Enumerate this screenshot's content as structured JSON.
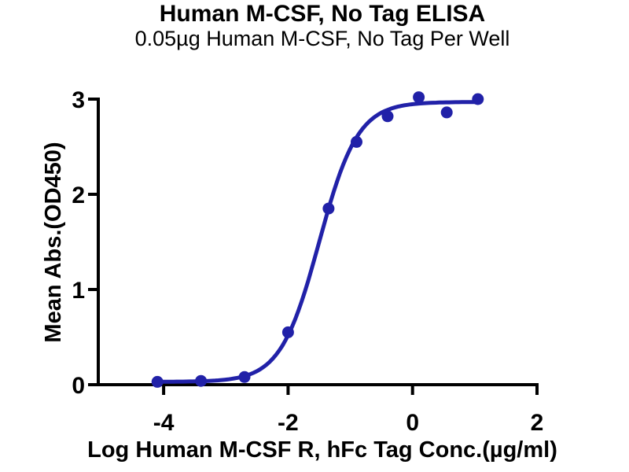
{
  "chart_data": {
    "type": "scatter",
    "title": "Human M-CSF, No Tag ELISA",
    "subtitle": "0.05µg Human M-CSF, No Tag Per Well",
    "xlabel": "Log Human M-CSF R, hFc Tag Conc.(µg/ml)",
    "ylabel": "Mean Abs.(OD450)",
    "xlim": [
      -5.05,
      2.0
    ],
    "ylim": [
      0,
      3
    ],
    "x_ticks": [
      -4,
      -2,
      0,
      2
    ],
    "x_tick_labels": [
      "-4",
      "-2",
      "0",
      "2"
    ],
    "y_ticks": [
      0,
      1,
      2,
      3
    ],
    "y_tick_labels": [
      "0",
      "1",
      "2",
      "3"
    ],
    "grid": false,
    "legend": "none",
    "axis_color": "#000000",
    "background_color": "#ffffff",
    "series": [
      {
        "name": "Human M-CSF R, hFc Tag",
        "color": "#2121a8",
        "marker": "circle",
        "points": [
          {
            "x": -4.1,
            "y": 0.03
          },
          {
            "x": -3.4,
            "y": 0.04
          },
          {
            "x": -2.7,
            "y": 0.08
          },
          {
            "x": -2.0,
            "y": 0.55
          },
          {
            "x": -1.35,
            "y": 1.85
          },
          {
            "x": -0.9,
            "y": 2.55
          },
          {
            "x": -0.4,
            "y": 2.82
          },
          {
            "x": 0.1,
            "y": 3.02
          },
          {
            "x": 0.55,
            "y": 2.86
          },
          {
            "x": 1.05,
            "y": 3.0
          }
        ],
        "fit_curve": {
          "model": "4PL",
          "bottom": 0.03,
          "top": 2.97,
          "logEC50": -1.5,
          "hillslope": 1.4,
          "x_range": [
            -4.1,
            1.05
          ]
        }
      }
    ]
  }
}
